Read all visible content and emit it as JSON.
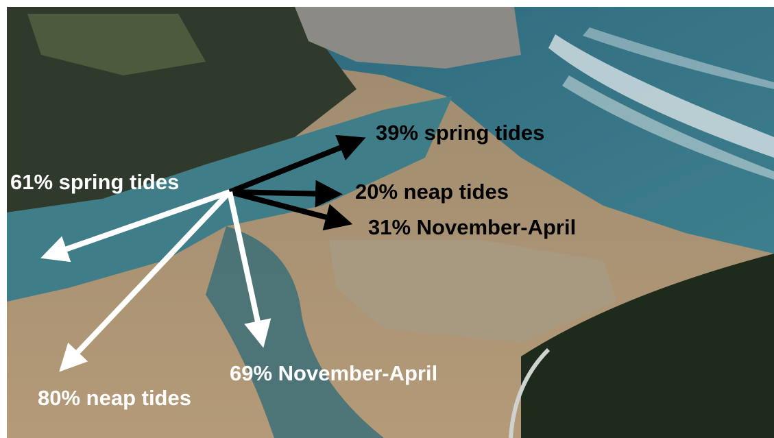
{
  "annotations": [
    {
      "text": "39% spring tides"
    },
    {
      "text": "20% neap tides"
    },
    {
      "text": "31% November-April"
    },
    {
      "text": "61% spring tides"
    },
    {
      "text": "69% November-April"
    },
    {
      "text": "80% neap tides"
    }
  ]
}
